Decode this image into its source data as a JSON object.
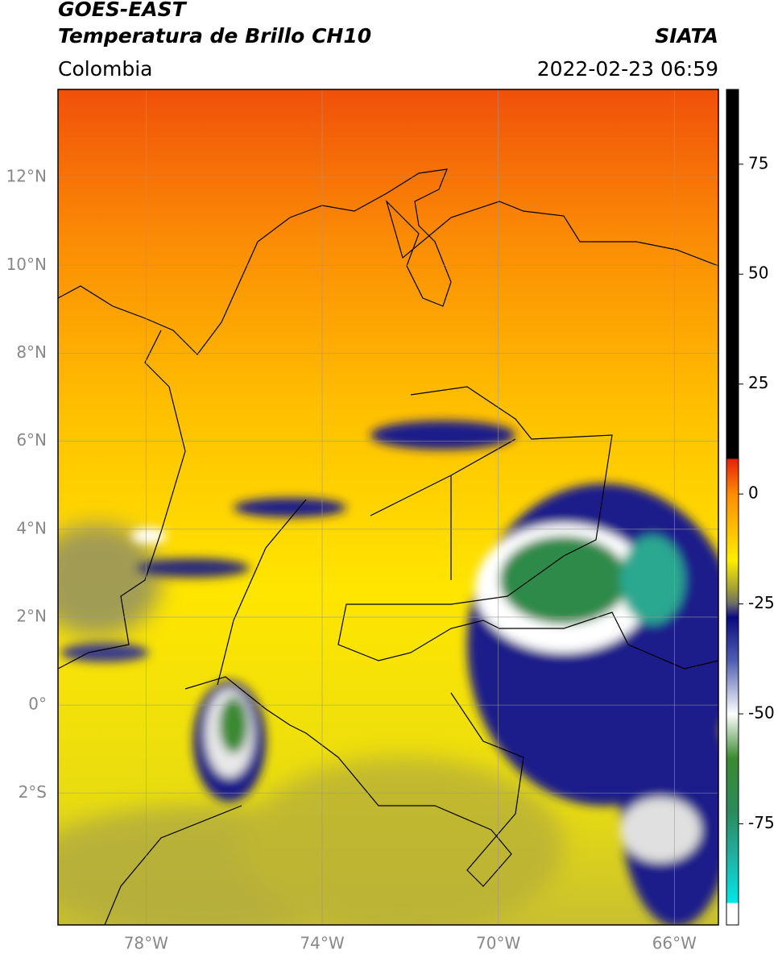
{
  "header": {
    "title": "GOES-EAST",
    "subtitle": "Temperatura de Brillo CH10",
    "source": "SIATA",
    "region": "Colombia",
    "timestamp": "2022-02-23 06:59"
  },
  "map": {
    "lon_range": [
      -80,
      -65
    ],
    "lat_range": [
      -5,
      14
    ],
    "lat_ticks": [
      {
        "value": 12,
        "label": "12°N"
      },
      {
        "value": 10,
        "label": "10°N"
      },
      {
        "value": 8,
        "label": "8°N"
      },
      {
        "value": 6,
        "label": "6°N"
      },
      {
        "value": 4,
        "label": "4°N"
      },
      {
        "value": 2,
        "label": "2°N"
      },
      {
        "value": 0,
        "label": "0°"
      },
      {
        "value": -2,
        "label": "2°S"
      }
    ],
    "lon_ticks": [
      {
        "value": -78,
        "label": "78°W"
      },
      {
        "value": -74,
        "label": "74°W"
      },
      {
        "value": -70,
        "label": "70°W"
      },
      {
        "value": -66,
        "label": "66°W"
      }
    ]
  },
  "colorbar": {
    "range": [
      -98,
      92
    ],
    "ticks": [
      75,
      50,
      25,
      0,
      -25,
      -50,
      -75
    ],
    "stops": [
      {
        "value": 92,
        "color": "#000000"
      },
      {
        "value": 8,
        "color": "#000000"
      },
      {
        "value": 8,
        "color": "#e8200a"
      },
      {
        "value": 0,
        "color": "#ff8c00"
      },
      {
        "value": -15,
        "color": "#ffee00"
      },
      {
        "value": -22,
        "color": "#9a9a3a"
      },
      {
        "value": -25,
        "color": "#6a6a6a"
      },
      {
        "value": -28,
        "color": "#0a0a80"
      },
      {
        "value": -38,
        "color": "#5060b0"
      },
      {
        "value": -50,
        "color": "#ffffff"
      },
      {
        "value": -60,
        "color": "#3a8a30"
      },
      {
        "value": -72,
        "color": "#2a8a5a"
      },
      {
        "value": -82,
        "color": "#20b0a0"
      },
      {
        "value": -93,
        "color": "#00e8e8"
      },
      {
        "value": -93,
        "color": "#ffffff"
      },
      {
        "value": -98,
        "color": "#ffffff"
      }
    ]
  }
}
